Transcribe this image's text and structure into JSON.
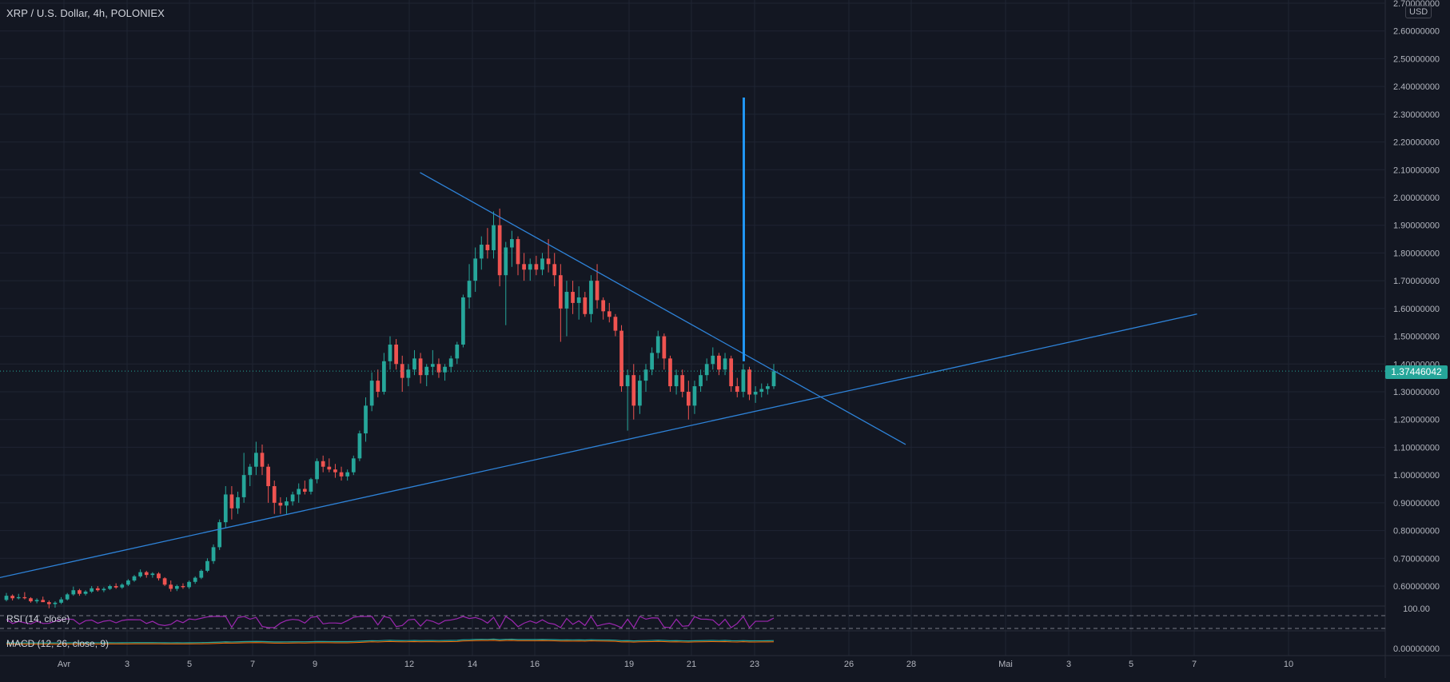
{
  "header": {
    "title": "XRP / U.S. Dollar, 4h, POLONIEX",
    "currency": "USD"
  },
  "price_axis": {
    "ticks": [
      "2.70000000",
      "2.60000000",
      "2.50000000",
      "2.40000000",
      "2.30000000",
      "2.20000000",
      "2.10000000",
      "2.00000000",
      "1.90000000",
      "1.80000000",
      "1.70000000",
      "1.60000000",
      "1.50000000",
      "1.40000000",
      "1.30000000",
      "1.20000000",
      "1.10000000",
      "1.00000000",
      "0.90000000",
      "0.80000000",
      "0.70000000",
      "0.60000000"
    ],
    "last_price": "1.37446042"
  },
  "time_axis": {
    "labels": [
      "Avr",
      "3",
      "5",
      "7",
      "9",
      "12",
      "14",
      "16",
      "19",
      "21",
      "23",
      "26",
      "28",
      "Mai",
      "3",
      "5",
      "7",
      "10"
    ]
  },
  "indicators": {
    "rsi": {
      "label": "RSI (14, close)",
      "level_label": "100.00"
    },
    "macd": {
      "label": "MACD (12, 26, close, 9)",
      "level_label": "0.00000000"
    }
  },
  "colors": {
    "background": "#131722",
    "grid": "#1f2433",
    "up": "#26a69a",
    "down": "#ef5350",
    "trendline": "#2e83d9",
    "projection": "#2196f3",
    "rsi": "#9c27b0",
    "text": "#b2b5be"
  },
  "chart_data": {
    "type": "candlestick",
    "symbol": "XRP / U.S. Dollar",
    "interval": "4h",
    "exchange": "POLONIEX",
    "ylim": [
      0.56,
      2.7
    ],
    "ohlc": [
      [
        0.55,
        0.575,
        0.545,
        0.565
      ],
      [
        0.565,
        0.57,
        0.548,
        0.556
      ],
      [
        0.556,
        0.572,
        0.552,
        0.56
      ],
      [
        0.56,
        0.578,
        0.552,
        0.556
      ],
      [
        0.556,
        0.56,
        0.54,
        0.545
      ],
      [
        0.545,
        0.556,
        0.538,
        0.55
      ],
      [
        0.55,
        0.562,
        0.545,
        0.542
      ],
      [
        0.542,
        0.548,
        0.52,
        0.535
      ],
      [
        0.535,
        0.545,
        0.522,
        0.54
      ],
      [
        0.54,
        0.56,
        0.535,
        0.552
      ],
      [
        0.552,
        0.575,
        0.548,
        0.57
      ],
      [
        0.57,
        0.598,
        0.565,
        0.585
      ],
      [
        0.585,
        0.59,
        0.565,
        0.572
      ],
      [
        0.572,
        0.585,
        0.566,
        0.58
      ],
      [
        0.58,
        0.6,
        0.575,
        0.592
      ],
      [
        0.592,
        0.6,
        0.58,
        0.585
      ],
      [
        0.585,
        0.596,
        0.578,
        0.59
      ],
      [
        0.59,
        0.605,
        0.586,
        0.6
      ],
      [
        0.6,
        0.61,
        0.59,
        0.595
      ],
      [
        0.595,
        0.61,
        0.59,
        0.605
      ],
      [
        0.605,
        0.625,
        0.6,
        0.62
      ],
      [
        0.62,
        0.64,
        0.615,
        0.635
      ],
      [
        0.635,
        0.66,
        0.63,
        0.65
      ],
      [
        0.65,
        0.655,
        0.63,
        0.64
      ],
      [
        0.64,
        0.65,
        0.63,
        0.645
      ],
      [
        0.645,
        0.65,
        0.62,
        0.628
      ],
      [
        0.628,
        0.632,
        0.6,
        0.605
      ],
      [
        0.605,
        0.62,
        0.58,
        0.59
      ],
      [
        0.59,
        0.605,
        0.582,
        0.6
      ],
      [
        0.6,
        0.61,
        0.59,
        0.596
      ],
      [
        0.596,
        0.62,
        0.59,
        0.615
      ],
      [
        0.615,
        0.635,
        0.608,
        0.63
      ],
      [
        0.63,
        0.66,
        0.625,
        0.655
      ],
      [
        0.655,
        0.7,
        0.65,
        0.69
      ],
      [
        0.69,
        0.75,
        0.68,
        0.74
      ],
      [
        0.74,
        0.84,
        0.73,
        0.83
      ],
      [
        0.83,
        0.96,
        0.81,
        0.93
      ],
      [
        0.93,
        0.96,
        0.84,
        0.88
      ],
      [
        0.88,
        0.94,
        0.86,
        0.92
      ],
      [
        0.92,
        1.08,
        0.9,
        1.0
      ],
      [
        1.0,
        1.04,
        0.96,
        1.03
      ],
      [
        1.03,
        1.12,
        1.0,
        1.08
      ],
      [
        1.08,
        1.11,
        1.0,
        1.03
      ],
      [
        1.03,
        1.04,
        0.9,
        0.96
      ],
      [
        0.96,
        0.98,
        0.86,
        0.9
      ],
      [
        0.9,
        0.92,
        0.86,
        0.89
      ],
      [
        0.89,
        0.92,
        0.86,
        0.905
      ],
      [
        0.905,
        0.94,
        0.89,
        0.93
      ],
      [
        0.93,
        0.97,
        0.9,
        0.95
      ],
      [
        0.95,
        0.98,
        0.93,
        0.94
      ],
      [
        0.94,
        0.99,
        0.93,
        0.985
      ],
      [
        0.985,
        1.06,
        0.97,
        1.05
      ],
      [
        1.05,
        1.07,
        1.01,
        1.03
      ],
      [
        1.03,
        1.06,
        1.01,
        1.02
      ],
      [
        1.02,
        1.04,
        0.99,
        1.01
      ],
      [
        1.01,
        1.03,
        0.98,
        0.995
      ],
      [
        0.995,
        1.02,
        0.98,
        1.01
      ],
      [
        1.01,
        1.07,
        1.0,
        1.06
      ],
      [
        1.06,
        1.16,
        1.05,
        1.15
      ],
      [
        1.15,
        1.28,
        1.12,
        1.25
      ],
      [
        1.25,
        1.37,
        1.23,
        1.34
      ],
      [
        1.34,
        1.38,
        1.28,
        1.3
      ],
      [
        1.3,
        1.44,
        1.29,
        1.41
      ],
      [
        1.41,
        1.5,
        1.38,
        1.47
      ],
      [
        1.47,
        1.49,
        1.38,
        1.4
      ],
      [
        1.4,
        1.43,
        1.3,
        1.35
      ],
      [
        1.35,
        1.4,
        1.32,
        1.38
      ],
      [
        1.38,
        1.45,
        1.36,
        1.42
      ],
      [
        1.42,
        1.44,
        1.33,
        1.36
      ],
      [
        1.36,
        1.4,
        1.32,
        1.39
      ],
      [
        1.39,
        1.45,
        1.36,
        1.4
      ],
      [
        1.4,
        1.42,
        1.35,
        1.37
      ],
      [
        1.37,
        1.4,
        1.34,
        1.39
      ],
      [
        1.39,
        1.43,
        1.37,
        1.42
      ],
      [
        1.42,
        1.48,
        1.4,
        1.47
      ],
      [
        1.47,
        1.65,
        1.46,
        1.64
      ],
      [
        1.64,
        1.76,
        1.6,
        1.7
      ],
      [
        1.7,
        1.82,
        1.66,
        1.78
      ],
      [
        1.78,
        1.86,
        1.74,
        1.83
      ],
      [
        1.83,
        1.89,
        1.78,
        1.81
      ],
      [
        1.81,
        1.95,
        1.78,
        1.9
      ],
      [
        1.9,
        1.96,
        1.68,
        1.72
      ],
      [
        1.72,
        1.84,
        1.54,
        1.82
      ],
      [
        1.82,
        1.88,
        1.75,
        1.85
      ],
      [
        1.85,
        1.86,
        1.72,
        1.76
      ],
      [
        1.76,
        1.8,
        1.7,
        1.74
      ],
      [
        1.74,
        1.78,
        1.7,
        1.76
      ],
      [
        1.76,
        1.79,
        1.72,
        1.74
      ],
      [
        1.74,
        1.8,
        1.72,
        1.78
      ],
      [
        1.78,
        1.85,
        1.73,
        1.76
      ],
      [
        1.76,
        1.8,
        1.68,
        1.72
      ],
      [
        1.72,
        1.76,
        1.48,
        1.6
      ],
      [
        1.6,
        1.7,
        1.5,
        1.66
      ],
      [
        1.66,
        1.7,
        1.58,
        1.62
      ],
      [
        1.62,
        1.68,
        1.56,
        1.64
      ],
      [
        1.64,
        1.66,
        1.57,
        1.58
      ],
      [
        1.58,
        1.72,
        1.55,
        1.7
      ],
      [
        1.7,
        1.76,
        1.6,
        1.63
      ],
      [
        1.63,
        1.64,
        1.56,
        1.59
      ],
      [
        1.59,
        1.62,
        1.55,
        1.57
      ],
      [
        1.57,
        1.58,
        1.5,
        1.52
      ],
      [
        1.52,
        1.54,
        1.3,
        1.32
      ],
      [
        1.32,
        1.38,
        1.16,
        1.36
      ],
      [
        1.36,
        1.4,
        1.2,
        1.25
      ],
      [
        1.25,
        1.36,
        1.22,
        1.34
      ],
      [
        1.34,
        1.4,
        1.3,
        1.38
      ],
      [
        1.38,
        1.46,
        1.36,
        1.44
      ],
      [
        1.44,
        1.52,
        1.42,
        1.5
      ],
      [
        1.5,
        1.51,
        1.38,
        1.42
      ],
      [
        1.42,
        1.43,
        1.3,
        1.32
      ],
      [
        1.32,
        1.38,
        1.29,
        1.36
      ],
      [
        1.36,
        1.38,
        1.28,
        1.3
      ],
      [
        1.3,
        1.34,
        1.2,
        1.25
      ],
      [
        1.25,
        1.34,
        1.22,
        1.32
      ],
      [
        1.32,
        1.38,
        1.3,
        1.36
      ],
      [
        1.36,
        1.42,
        1.34,
        1.4
      ],
      [
        1.4,
        1.46,
        1.38,
        1.43
      ],
      [
        1.43,
        1.44,
        1.36,
        1.38
      ],
      [
        1.38,
        1.44,
        1.36,
        1.42
      ],
      [
        1.42,
        1.43,
        1.3,
        1.32
      ],
      [
        1.32,
        1.35,
        1.28,
        1.3
      ],
      [
        1.3,
        1.4,
        1.28,
        1.38
      ],
      [
        1.38,
        1.39,
        1.27,
        1.29
      ],
      [
        1.29,
        1.32,
        1.26,
        1.3
      ],
      [
        1.3,
        1.33,
        1.28,
        1.31
      ],
      [
        1.31,
        1.33,
        1.29,
        1.32
      ],
      [
        1.32,
        1.4,
        1.31,
        1.374
      ]
    ],
    "rsi_level": 100,
    "drawings": {
      "descending_trendline": {
        "from": [
          "2021-04-12",
          2.09
        ],
        "to": [
          "2021-04-27",
          1.11
        ]
      },
      "ascending_trendline": {
        "from": [
          "2021-03-30",
          0.63
        ],
        "to": [
          "2021-05-06",
          1.58
        ]
      },
      "projection": {
        "x": "2021-04-22",
        "from": 1.41,
        "to": 2.36
      }
    }
  }
}
